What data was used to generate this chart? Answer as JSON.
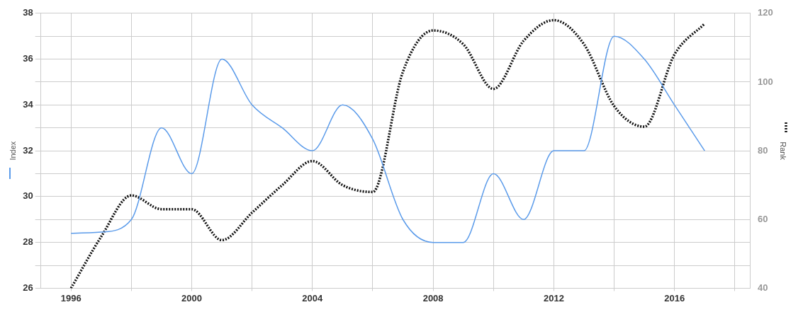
{
  "chart_data": {
    "type": "line",
    "ylabel": "Index",
    "y2label": "Rank",
    "x": [
      1996,
      1997,
      1998,
      1999,
      2000,
      2001,
      2002,
      2003,
      2004,
      2005,
      2006,
      2007,
      2008,
      2009,
      2010,
      2011,
      2012,
      2013,
      2014,
      2015,
      2016,
      2017
    ],
    "series": [
      {
        "color": "#5b9bea",
        "line_style": "solid",
        "values": [
          28.4,
          28.45,
          29,
          33,
          31,
          36,
          34,
          33,
          32,
          34,
          32.5,
          29,
          28,
          28,
          31,
          29,
          32,
          32,
          37,
          36,
          34,
          32
        ]
      },
      {
        "color": "#111111",
        "line_style": "dotted",
        "axis": "y2",
        "values": [
          40,
          55,
          67,
          63,
          63,
          54,
          62,
          70,
          77,
          70,
          68,
          103,
          115,
          111,
          98,
          112,
          118,
          111,
          93,
          87,
          108,
          117
        ]
      }
    ],
    "xlim": [
      1995,
      2018.5
    ],
    "xticks": [
      1996,
      {
        "value": 1998,
        "label": null
      },
      2000,
      {
        "value": 2002,
        "label": null
      },
      2004,
      {
        "value": 2006,
        "label": null
      },
      2008,
      {
        "value": 2010,
        "label": null
      },
      2012,
      {
        "value": 2014,
        "label": null
      },
      2016,
      {
        "value": 2018,
        "label": null
      }
    ],
    "ylim": [
      26,
      38
    ],
    "yticks": [
      26,
      {
        "value": 27,
        "label": null
      },
      28,
      {
        "value": 29,
        "label": null
      },
      30,
      {
        "value": 31,
        "label": null
      },
      32,
      {
        "value": 33,
        "label": null
      },
      34,
      {
        "value": 35,
        "label": null
      },
      36,
      {
        "value": 37,
        "label": null
      },
      38
    ],
    "y2lim": [
      40,
      120
    ],
    "y2ticks": [
      40,
      60,
      80,
      100,
      120
    ],
    "grid": true,
    "legend": false,
    "marker": "none"
  }
}
